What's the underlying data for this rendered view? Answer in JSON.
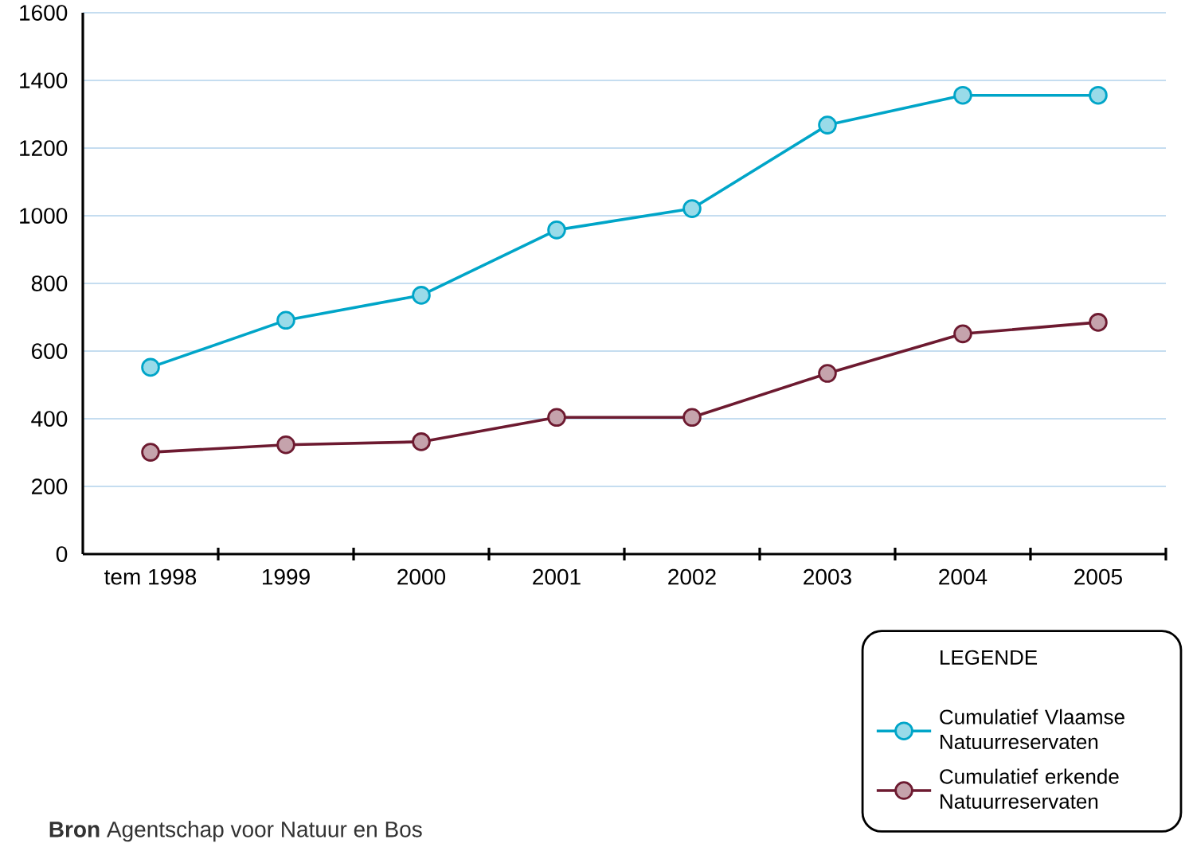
{
  "chart_data": {
    "type": "line",
    "categories": [
      "tem 1998",
      "1999",
      "2000",
      "2001",
      "2002",
      "2003",
      "2004",
      "2005"
    ],
    "series": [
      {
        "name": "Cumulatief Vlaamse Natuurreservaten",
        "color": "#00a5c8",
        "values": [
          552,
          691,
          765,
          958,
          1021,
          1268,
          1356,
          1356
        ]
      },
      {
        "name": "Cumulatief erkende Natuurreservaten",
        "color": "#6d1a30",
        "values": [
          301,
          323,
          332,
          404,
          404,
          534,
          651,
          685
        ]
      }
    ],
    "ylim": [
      0,
      1600
    ],
    "yticks": [
      0,
      200,
      400,
      600,
      800,
      1000,
      1200,
      1400,
      1600
    ],
    "grid": "y",
    "marker": "circle",
    "line_style": "solid",
    "legend": "bottom right",
    "legend_title": "LEGENDE",
    "annotations": [
      "**Bron** Agentschap voor Natuur en Bos"
    ]
  }
}
